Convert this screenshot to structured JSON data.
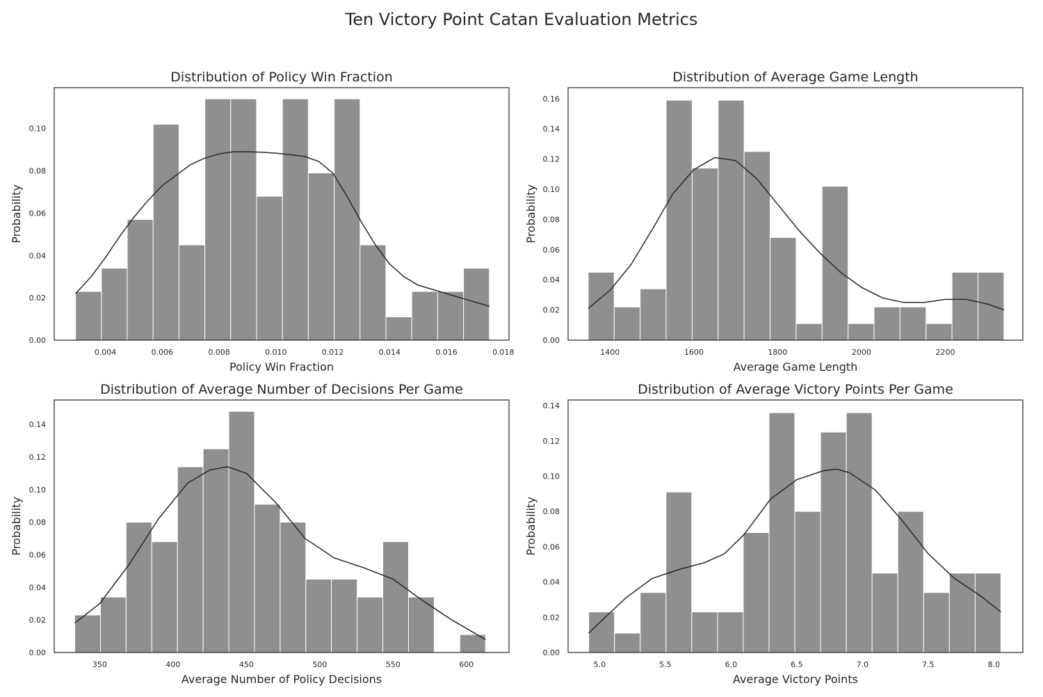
{
  "figure": {
    "suptitle": "Ten Victory Point Catan Evaluation Metrics"
  },
  "colors": {
    "bar": "#8f8f8f",
    "bar_edge": "#ffffff",
    "kde": "#262626",
    "axes": "#262626"
  },
  "chart_data": [
    {
      "type": "bar",
      "title": "Distribution of Policy Win Fraction",
      "xlabel": "Policy Win Fraction",
      "ylabel": "Probability",
      "xlim": [
        0.0022,
        0.0182
      ],
      "ylim": [
        0,
        0.1193
      ],
      "xticks": [
        0.004,
        0.006,
        0.008,
        0.01,
        0.012,
        0.014,
        0.016,
        0.018
      ],
      "xtick_labels": [
        "0.004",
        "0.006",
        "0.008",
        "0.010",
        "0.012",
        "0.014",
        "0.016",
        "0.018"
      ],
      "yticks": [
        0,
        0.02,
        0.04,
        0.06,
        0.08,
        0.1
      ],
      "ytick_labels": [
        "0.00",
        "0.02",
        "0.04",
        "0.06",
        "0.08",
        "0.10"
      ],
      "bin_edges": [
        0.00295,
        0.00386,
        0.00477,
        0.00568,
        0.00659,
        0.0075,
        0.00841,
        0.00932,
        0.01023,
        0.01114,
        0.01205,
        0.01296,
        0.01387,
        0.01478,
        0.01569,
        0.0166,
        0.01751
      ],
      "values": [
        0.023,
        0.034,
        0.057,
        0.102,
        0.045,
        0.114,
        0.114,
        0.068,
        0.114,
        0.079,
        0.114,
        0.045,
        0.011,
        0.023,
        0.023,
        0.034
      ],
      "kde": {
        "x": [
          0.00295,
          0.0035,
          0.004,
          0.0045,
          0.005,
          0.0055,
          0.006,
          0.0065,
          0.007,
          0.0075,
          0.008,
          0.0085,
          0.009,
          0.0095,
          0.01,
          0.0105,
          0.011,
          0.0115,
          0.012,
          0.0125,
          0.013,
          0.0135,
          0.014,
          0.0145,
          0.015,
          0.0155,
          0.016,
          0.0165,
          0.017,
          0.01751
        ],
        "y": [
          0.022,
          0.03,
          0.039,
          0.049,
          0.058,
          0.066,
          0.073,
          0.078,
          0.083,
          0.086,
          0.088,
          0.089,
          0.089,
          0.0888,
          0.0883,
          0.0877,
          0.0868,
          0.0845,
          0.079,
          0.068,
          0.056,
          0.045,
          0.036,
          0.03,
          0.026,
          0.024,
          0.022,
          0.02,
          0.018,
          0.016
        ]
      }
    },
    {
      "type": "bar",
      "title": "Distribution of Average Game Length",
      "xlabel": "Average Game Length",
      "ylabel": "Probability",
      "xlim": [
        1300,
        2385
      ],
      "ylim": [
        0,
        0.1673
      ],
      "xticks": [
        1400,
        1600,
        1800,
        2000,
        2200
      ],
      "xtick_labels": [
        "1400",
        "1600",
        "1800",
        "2000",
        "2200"
      ],
      "yticks": [
        0,
        0.02,
        0.04,
        0.06,
        0.08,
        0.1,
        0.12,
        0.14,
        0.16
      ],
      "ytick_labels": [
        "0.00",
        "0.02",
        "0.04",
        "0.06",
        "0.08",
        "0.10",
        "0.12",
        "0.14",
        "0.16"
      ],
      "bin_edges": [
        1348,
        1410,
        1472,
        1534,
        1596,
        1658,
        1720,
        1782,
        1844,
        1906,
        1968,
        2030,
        2092,
        2154,
        2216,
        2278,
        2340
      ],
      "values": [
        0.045,
        0.022,
        0.034,
        0.159,
        0.114,
        0.159,
        0.125,
        0.068,
        0.011,
        0.102,
        0.011,
        0.022,
        0.022,
        0.011,
        0.045,
        0.045
      ],
      "kde": {
        "x": [
          1348,
          1400,
          1450,
          1500,
          1550,
          1600,
          1650,
          1700,
          1750,
          1800,
          1850,
          1900,
          1950,
          2000,
          2050,
          2100,
          2150,
          2200,
          2250,
          2300,
          2340
        ],
        "y": [
          0.021,
          0.033,
          0.05,
          0.073,
          0.097,
          0.113,
          0.121,
          0.119,
          0.107,
          0.09,
          0.073,
          0.058,
          0.045,
          0.035,
          0.028,
          0.025,
          0.025,
          0.027,
          0.027,
          0.024,
          0.02
        ]
      }
    },
    {
      "type": "bar",
      "title": "Distribution of Average Number of Decisions Per Game",
      "xlabel": "Average Number of Policy Decisions",
      "ylabel": "Probability",
      "xlim": [
        319,
        629
      ],
      "ylim": [
        0,
        0.155
      ],
      "xticks": [
        350,
        400,
        450,
        500,
        550,
        600
      ],
      "xtick_labels": [
        "350",
        "400",
        "450",
        "500",
        "550",
        "600"
      ],
      "yticks": [
        0,
        0.02,
        0.04,
        0.06,
        0.08,
        0.1,
        0.12,
        0.14
      ],
      "ytick_labels": [
        "0.00",
        "0.02",
        "0.04",
        "0.06",
        "0.08",
        "0.10",
        "0.12",
        "0.14"
      ],
      "bin_edges": [
        333,
        350.5,
        368,
        385.5,
        403,
        420.5,
        438,
        455.5,
        473,
        490.5,
        508,
        525.5,
        543,
        560.5,
        578,
        595.5,
        613
      ],
      "values": [
        0.023,
        0.034,
        0.08,
        0.068,
        0.114,
        0.125,
        0.148,
        0.091,
        0.08,
        0.045,
        0.045,
        0.034,
        0.068,
        0.034,
        0,
        0.011
      ],
      "kde": {
        "x": [
          333,
          350,
          370,
          390,
          410,
          425,
          437,
          450,
          470,
          490,
          510,
          530,
          550,
          570,
          590,
          613
        ],
        "y": [
          0.018,
          0.03,
          0.054,
          0.082,
          0.104,
          0.112,
          0.114,
          0.11,
          0.092,
          0.07,
          0.058,
          0.052,
          0.045,
          0.032,
          0.02,
          0.008
        ]
      }
    },
    {
      "type": "bar",
      "title": "Distribution of Average Victory Points Per Game",
      "xlabel": "Average Victory Points",
      "ylabel": "Probability",
      "xlim": [
        4.76,
        8.22
      ],
      "ylim": [
        0,
        0.1432
      ],
      "xticks": [
        5.0,
        5.5,
        6.0,
        6.5,
        7.0,
        7.5,
        8.0
      ],
      "xtick_labels": [
        "5.0",
        "5.5",
        "6.0",
        "6.5",
        "7.0",
        "7.5",
        "8.0"
      ],
      "yticks": [
        0,
        0.02,
        0.04,
        0.06,
        0.08,
        0.1,
        0.12,
        0.14
      ],
      "ytick_labels": [
        "0.00",
        "0.02",
        "0.04",
        "0.06",
        "0.08",
        "0.10",
        "0.12",
        "0.14"
      ],
      "bin_edges": [
        4.917,
        5.113,
        5.309,
        5.505,
        5.701,
        5.897,
        6.093,
        6.289,
        6.485,
        6.681,
        6.877,
        7.073,
        7.269,
        7.465,
        7.661,
        7.857,
        8.053
      ],
      "values": [
        0.023,
        0.011,
        0.034,
        0.091,
        0.023,
        0.023,
        0.068,
        0.136,
        0.08,
        0.125,
        0.136,
        0.045,
        0.08,
        0.034,
        0.045,
        0.045
      ],
      "kde": {
        "x": [
          4.917,
          5.0,
          5.2,
          5.4,
          5.6,
          5.8,
          5.95,
          6.1,
          6.3,
          6.5,
          6.7,
          6.8,
          6.9,
          7.1,
          7.3,
          7.5,
          7.7,
          7.9,
          8.053
        ],
        "y": [
          0.011,
          0.017,
          0.031,
          0.042,
          0.047,
          0.051,
          0.056,
          0.067,
          0.087,
          0.098,
          0.103,
          0.104,
          0.102,
          0.092,
          0.075,
          0.056,
          0.042,
          0.032,
          0.023
        ]
      }
    }
  ]
}
